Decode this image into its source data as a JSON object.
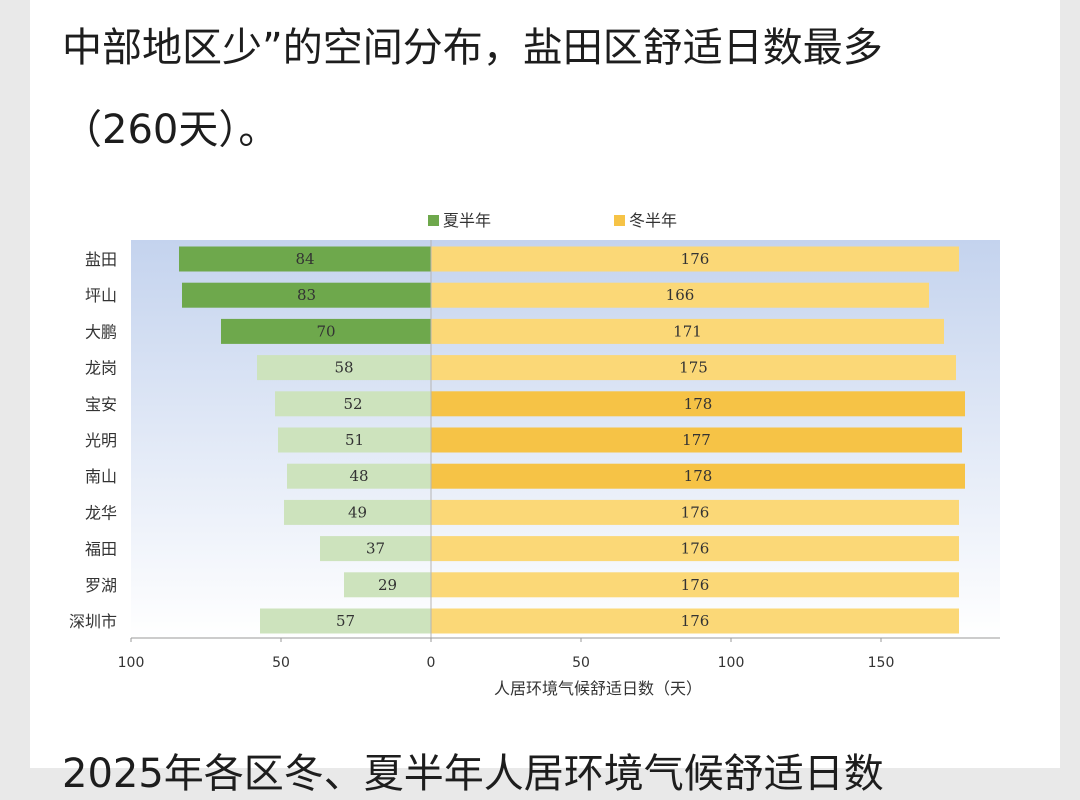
{
  "article": {
    "para1_line1": "中部地区少”的空间分布，盐田区舒适日数最多",
    "para1_line2": "（260天）。",
    "para2_line1": "2025年各区冬、夏半年人居环境气候舒适日数"
  },
  "chart_data": {
    "type": "bar",
    "orientation": "horizontal-diverging",
    "categories": [
      "盐田",
      "坪山",
      "大鹏",
      "龙岗",
      "宝安",
      "光明",
      "南山",
      "龙华",
      "福田",
      "罗湖",
      "深圳市"
    ],
    "series": [
      {
        "name": "夏半年",
        "values": [
          84,
          83,
          70,
          58,
          52,
          51,
          48,
          49,
          37,
          29,
          57
        ],
        "direction": "left"
      },
      {
        "name": "冬半年",
        "values": [
          176,
          166,
          171,
          175,
          178,
          177,
          178,
          176,
          176,
          176,
          176
        ],
        "direction": "right"
      }
    ],
    "xlabel": "人居环境气候舒适日数（天）",
    "xticks": [
      {
        "value": -100,
        "label": "100"
      },
      {
        "value": -50,
        "label": "50"
      },
      {
        "value": 0,
        "label": "0"
      },
      {
        "value": 50,
        "label": "50"
      },
      {
        "value": 100,
        "label": "100"
      },
      {
        "value": 150,
        "label": "150"
      }
    ],
    "xlim": [
      -100,
      190
    ],
    "legend_position": "top",
    "colors": {
      "summer_dark": "#6ea84c",
      "summer_light": "#cde3bd",
      "winter_light": "#fbd877",
      "winter_dark": "#f6c346",
      "plot_bg_top": "#c4d3ee",
      "plot_bg_bottom": "#ffffff"
    },
    "highlight_summer_categories": [
      "盐田",
      "坪山",
      "大鹏"
    ],
    "highlight_winter_categories": [
      "宝安",
      "光明",
      "南山"
    ],
    "grid": false
  }
}
